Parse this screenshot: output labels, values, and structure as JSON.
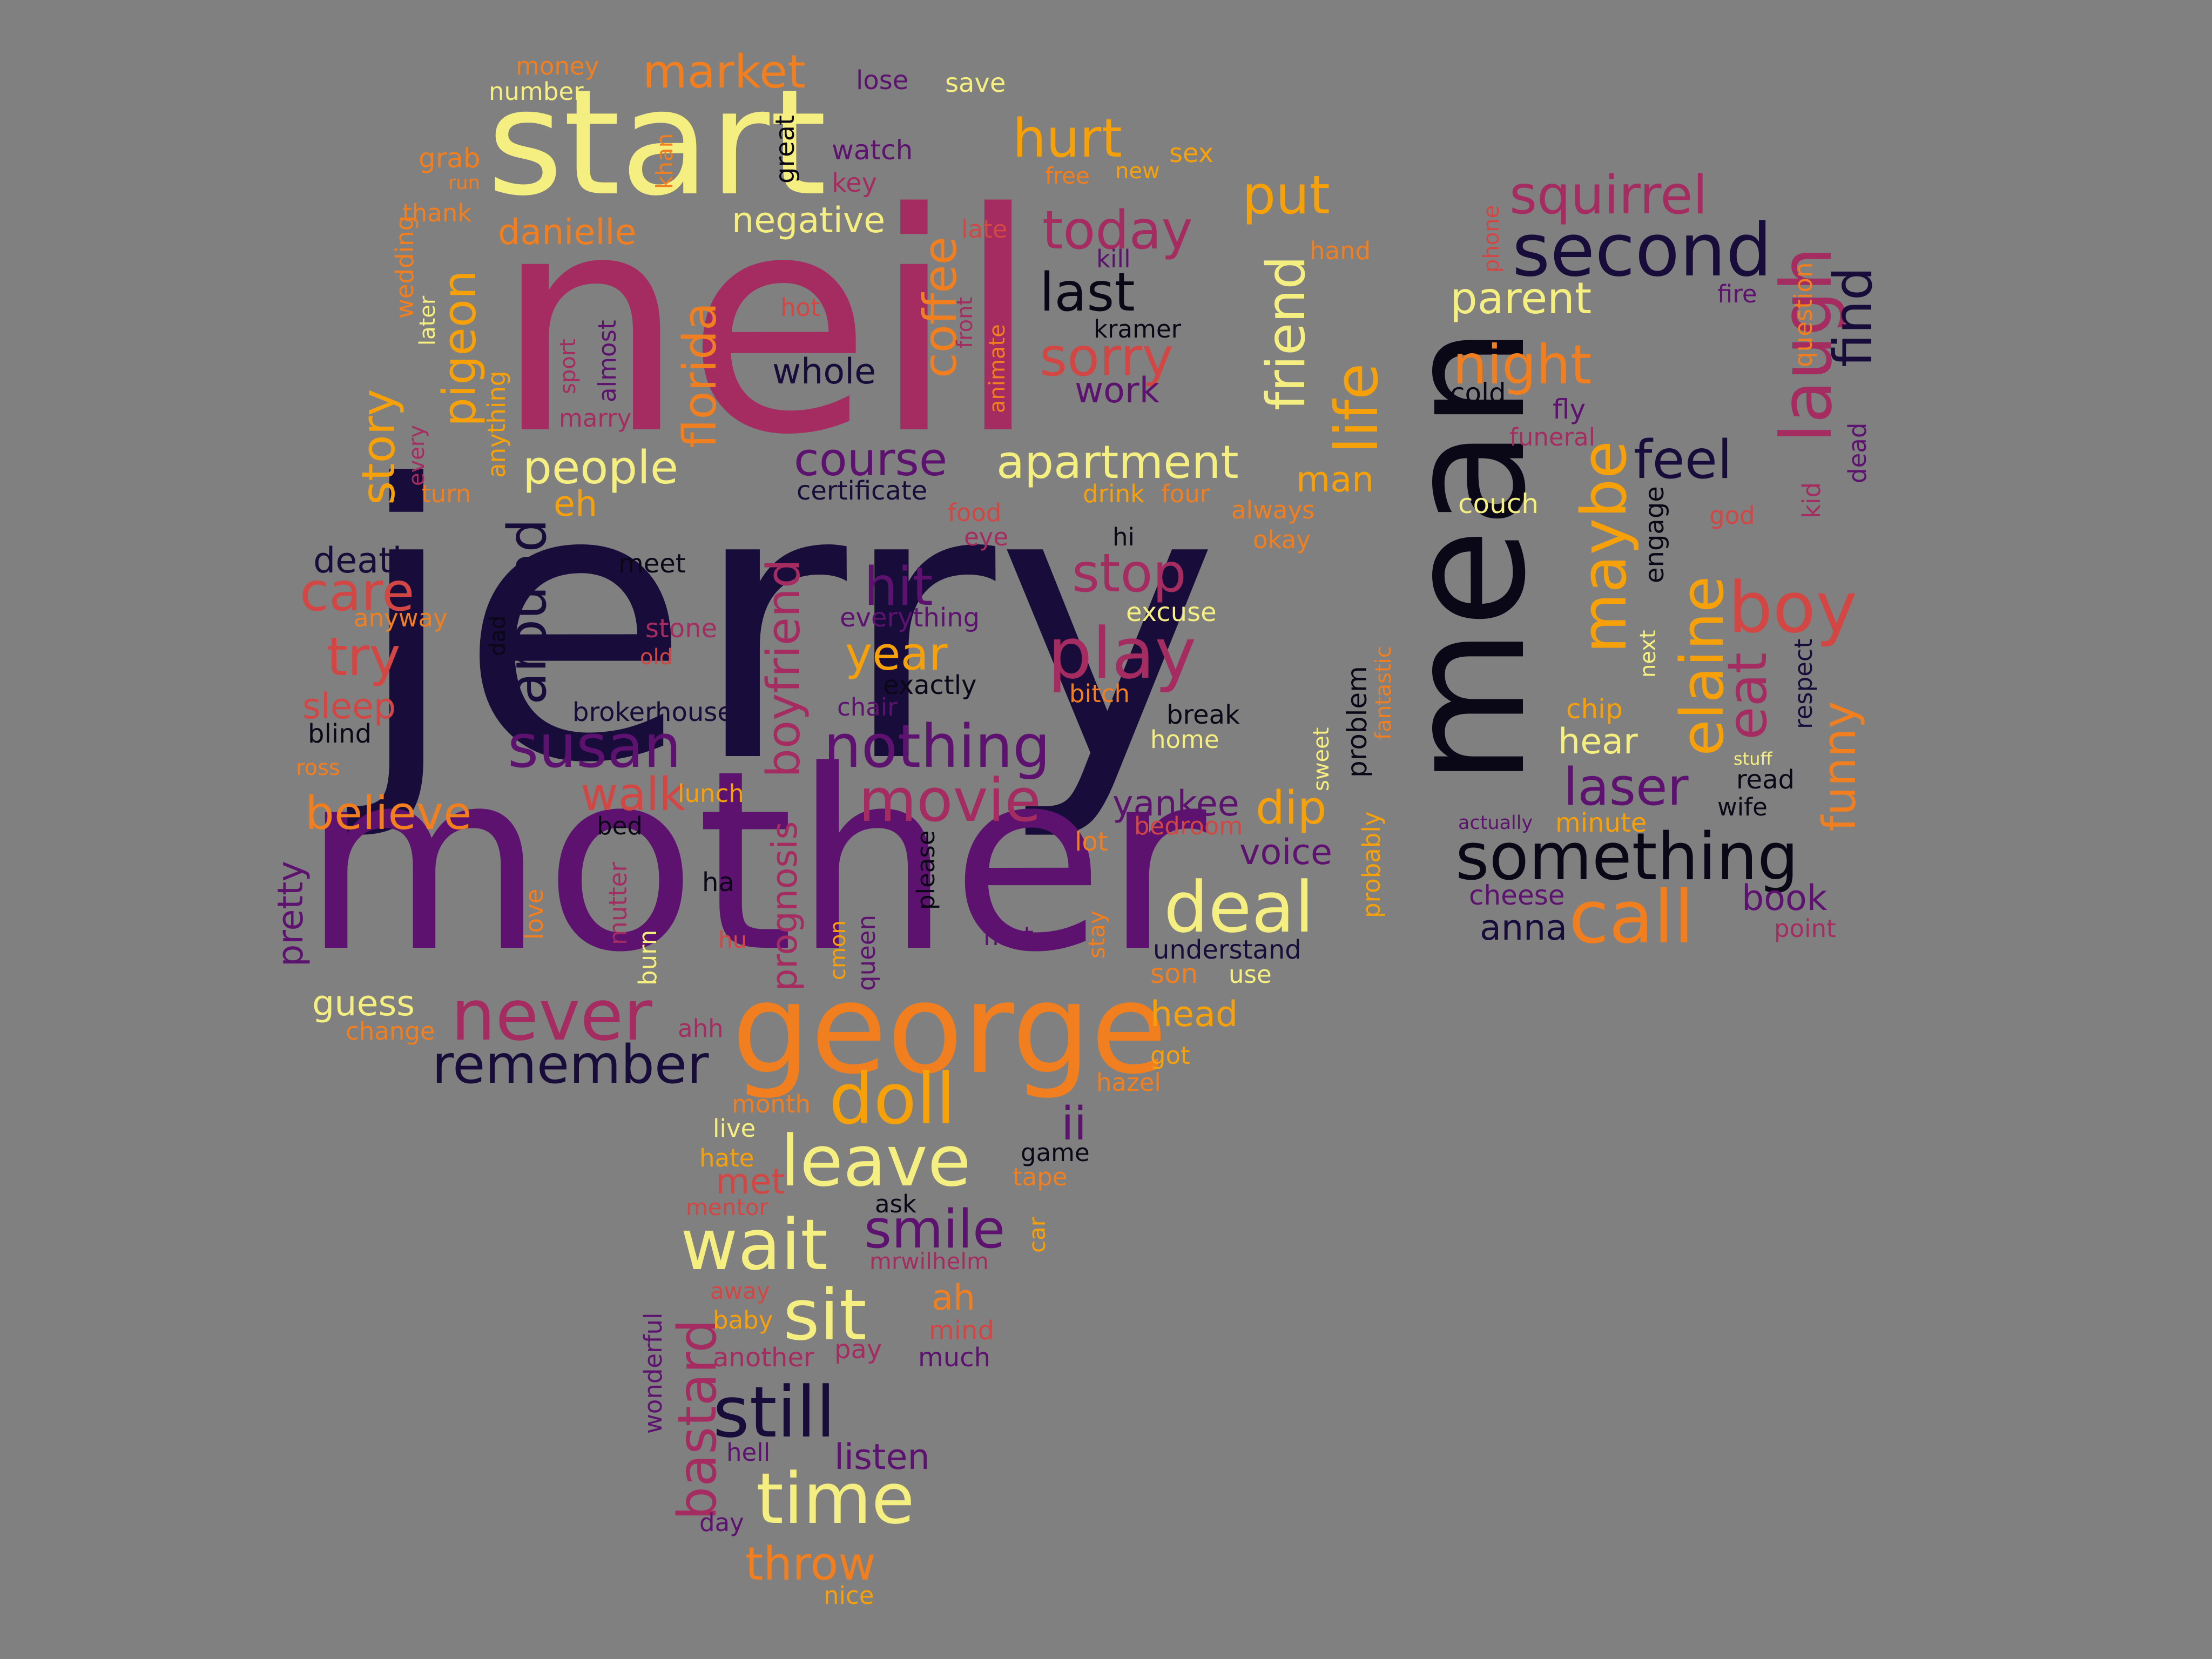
{
  "palette": {
    "background": "#808080",
    "dark": "#170c3a",
    "purple": "#5c126e",
    "magenta": "#a52c60",
    "red": "#d24644",
    "orange": "#f17f1f",
    "amber": "#f6a10a",
    "yellow": "#f5ee80",
    "black": "#0a0716"
  },
  "words": [
    {
      "text": "jerry",
      "color": "#170c3a"
    },
    {
      "text": "neil",
      "color": "#a52c60"
    },
    {
      "text": "mother",
      "color": "#5c126e"
    },
    {
      "text": "start",
      "color": "#f5ee80"
    },
    {
      "text": "mean",
      "color": "#0a0716"
    },
    {
      "text": "george",
      "color": "#f17f1f"
    },
    {
      "text": "something",
      "color": "#0a0716"
    },
    {
      "text": "second",
      "color": "#170c3a"
    },
    {
      "text": "squirrel",
      "color": "#a52c60"
    },
    {
      "text": "parent",
      "color": "#f5ee80"
    },
    {
      "text": "night",
      "color": "#f17f1f"
    },
    {
      "text": "laugh",
      "color": "#a52c60"
    },
    {
      "text": "find",
      "color": "#170c3a"
    },
    {
      "text": "maybe",
      "color": "#f6a10a"
    },
    {
      "text": "elaine",
      "color": "#f6a10a"
    },
    {
      "text": "boy",
      "color": "#d24644"
    },
    {
      "text": "eat",
      "color": "#a52c60"
    },
    {
      "text": "funny",
      "color": "#f17f1f"
    },
    {
      "text": "feel",
      "color": "#170c3a"
    },
    {
      "text": "laser",
      "color": "#5c126e"
    },
    {
      "text": "call",
      "color": "#f17f1f"
    },
    {
      "text": "hear",
      "color": "#f5ee80"
    },
    {
      "text": "chip",
      "color": "#f6a10a"
    },
    {
      "text": "minute",
      "color": "#f6a10a"
    },
    {
      "text": "actually",
      "color": "#5c126e"
    },
    {
      "text": "cheese",
      "color": "#5c126e"
    },
    {
      "text": "anna",
      "color": "#170c3a"
    },
    {
      "text": "book",
      "color": "#5c126e"
    },
    {
      "text": "point",
      "color": "#a52c60"
    },
    {
      "text": "read",
      "color": "#0a0716"
    },
    {
      "text": "wife",
      "color": "#0a0716"
    },
    {
      "text": "stuff",
      "color": "#f5ee80"
    },
    {
      "text": "respect",
      "color": "#170c3a"
    },
    {
      "text": "next",
      "color": "#f5ee80"
    },
    {
      "text": "engage",
      "color": "#0a0716"
    },
    {
      "text": "couch",
      "color": "#f5ee80"
    },
    {
      "text": "cold",
      "color": "#0a0716"
    },
    {
      "text": "fly",
      "color": "#5c126e"
    },
    {
      "text": "funeral",
      "color": "#a52c60"
    },
    {
      "text": "god",
      "color": "#d24644"
    },
    {
      "text": "kid",
      "color": "#a52c60"
    },
    {
      "text": "dead",
      "color": "#5c126e"
    },
    {
      "text": "phone",
      "color": "#d24644"
    },
    {
      "text": "question",
      "color": "#f17f1f"
    },
    {
      "text": "fire",
      "color": "#5c126e"
    },
    {
      "text": "money",
      "color": "#f17f1f"
    },
    {
      "text": "number",
      "color": "#f5ee80"
    },
    {
      "text": "market",
      "color": "#f17f1f"
    },
    {
      "text": "lose",
      "color": "#5c126e"
    },
    {
      "text": "save",
      "color": "#f5ee80"
    },
    {
      "text": "grab",
      "color": "#f17f1f"
    },
    {
      "text": "run",
      "color": "#f17f1f"
    },
    {
      "text": "khan",
      "color": "#f17f1f"
    },
    {
      "text": "great",
      "color": "#0a0716"
    },
    {
      "text": "watch",
      "color": "#5c126e"
    },
    {
      "text": "key",
      "color": "#a52c60"
    },
    {
      "text": "hurt",
      "color": "#f6a10a"
    },
    {
      "text": "free",
      "color": "#f17f1f"
    },
    {
      "text": "new",
      "color": "#f6a10a"
    },
    {
      "text": "sex",
      "color": "#f6a10a"
    },
    {
      "text": "thank",
      "color": "#f17f1f"
    },
    {
      "text": "danielle",
      "color": "#f17f1f"
    },
    {
      "text": "negative",
      "color": "#f5ee80"
    },
    {
      "text": "late",
      "color": "#d24644"
    },
    {
      "text": "put",
      "color": "#f6a10a"
    },
    {
      "text": "today",
      "color": "#a52c60"
    },
    {
      "text": "kill",
      "color": "#5c126e"
    },
    {
      "text": "hand",
      "color": "#f17f1f"
    },
    {
      "text": "wedding",
      "color": "#f17f1f"
    },
    {
      "text": "later",
      "color": "#f5ee80"
    },
    {
      "text": "pigeon",
      "color": "#f6a10a"
    },
    {
      "text": "hot",
      "color": "#d24644"
    },
    {
      "text": "florida",
      "color": "#f17f1f"
    },
    {
      "text": "coffee",
      "color": "#f17f1f"
    },
    {
      "text": "front",
      "color": "#a52c60"
    },
    {
      "text": "animate",
      "color": "#f17f1f"
    },
    {
      "text": "last",
      "color": "#0a0716"
    },
    {
      "text": "kramer",
      "color": "#0a0716"
    },
    {
      "text": "friend",
      "color": "#f5ee80"
    },
    {
      "text": "life",
      "color": "#f6a10a"
    },
    {
      "text": "sorry",
      "color": "#d24644"
    },
    {
      "text": "work",
      "color": "#5c126e"
    },
    {
      "text": "whole",
      "color": "#170c3a"
    },
    {
      "text": "story",
      "color": "#f6a10a"
    },
    {
      "text": "every",
      "color": "#a52c60"
    },
    {
      "text": "anything",
      "color": "#f6a10a"
    },
    {
      "text": "sport",
      "color": "#a52c60"
    },
    {
      "text": "almost",
      "color": "#5c126e"
    },
    {
      "text": "marry",
      "color": "#a52c60"
    },
    {
      "text": "turn",
      "color": "#f17f1f"
    },
    {
      "text": "people",
      "color": "#f5ee80"
    },
    {
      "text": "course",
      "color": "#5c126e"
    },
    {
      "text": "apartment",
      "color": "#f5ee80"
    },
    {
      "text": "man",
      "color": "#f6a10a"
    },
    {
      "text": "certificate",
      "color": "#170c3a"
    },
    {
      "text": "drink",
      "color": "#f6a10a"
    },
    {
      "text": "four",
      "color": "#f17f1f"
    },
    {
      "text": "always",
      "color": "#f17f1f"
    },
    {
      "text": "okay",
      "color": "#f17f1f"
    },
    {
      "text": "eh",
      "color": "#f6a10a"
    },
    {
      "text": "food",
      "color": "#d24644"
    },
    {
      "text": "eye",
      "color": "#a52c60"
    },
    {
      "text": "hi",
      "color": "#0a0716"
    },
    {
      "text": "death",
      "color": "#170c3a"
    },
    {
      "text": "meet",
      "color": "#0a0716"
    },
    {
      "text": "around",
      "color": "#170c3a"
    },
    {
      "text": "care",
      "color": "#d24644"
    },
    {
      "text": "anyway",
      "color": "#f17f1f"
    },
    {
      "text": "dad",
      "color": "#0a0716"
    },
    {
      "text": "stone",
      "color": "#a52c60"
    },
    {
      "text": "old",
      "color": "#d24644"
    },
    {
      "text": "hit",
      "color": "#5c126e"
    },
    {
      "text": "everything",
      "color": "#5c126e"
    },
    {
      "text": "stop",
      "color": "#a52c60"
    },
    {
      "text": "excuse",
      "color": "#f5ee80"
    },
    {
      "text": "fantastic",
      "color": "#f17f1f"
    },
    {
      "text": "try",
      "color": "#d24644"
    },
    {
      "text": "boyfriend",
      "color": "#a52c60"
    },
    {
      "text": "year",
      "color": "#f6a10a"
    },
    {
      "text": "play",
      "color": "#a52c60"
    },
    {
      "text": "problem",
      "color": "#0a0716"
    },
    {
      "text": "exactly",
      "color": "#0a0716"
    },
    {
      "text": "sleep",
      "color": "#d24644"
    },
    {
      "text": "blind",
      "color": "#0a0716"
    },
    {
      "text": "brokerhouse",
      "color": "#170c3a"
    },
    {
      "text": "chair",
      "color": "#5c126e"
    },
    {
      "text": "bitch",
      "color": "#f17f1f"
    },
    {
      "text": "break",
      "color": "#0a0716"
    },
    {
      "text": "susan",
      "color": "#5c126e"
    },
    {
      "text": "nothing",
      "color": "#5c126e"
    },
    {
      "text": "home",
      "color": "#f5ee80"
    },
    {
      "text": "sweet",
      "color": "#f5ee80"
    },
    {
      "text": "ross",
      "color": "#f17f1f"
    },
    {
      "text": "walk",
      "color": "#d24644"
    },
    {
      "text": "believe",
      "color": "#f17f1f"
    },
    {
      "text": "lunch",
      "color": "#f6a10a"
    },
    {
      "text": "movie",
      "color": "#a52c60"
    },
    {
      "text": "yankee",
      "color": "#5c126e"
    },
    {
      "text": "dip",
      "color": "#f6a10a"
    },
    {
      "text": "probably",
      "color": "#f6a10a"
    },
    {
      "text": "bedroom",
      "color": "#d24644"
    },
    {
      "text": "bed",
      "color": "#0a0716"
    },
    {
      "text": "prognosis",
      "color": "#a52c60"
    },
    {
      "text": "lot",
      "color": "#f17f1f"
    },
    {
      "text": "voice",
      "color": "#5c126e"
    },
    {
      "text": "pretty",
      "color": "#5c126e"
    },
    {
      "text": "ha",
      "color": "#0a0716"
    },
    {
      "text": "deal",
      "color": "#f5ee80"
    },
    {
      "text": "love",
      "color": "#f17f1f"
    },
    {
      "text": "mutter",
      "color": "#a52c60"
    },
    {
      "text": "please",
      "color": "#0a0716"
    },
    {
      "text": "stay",
      "color": "#f17f1f"
    },
    {
      "text": "burn",
      "color": "#f5ee80"
    },
    {
      "text": "hu",
      "color": "#d24644"
    },
    {
      "text": "cmon",
      "color": "#f6a10a"
    },
    {
      "text": "queen",
      "color": "#5c126e"
    },
    {
      "text": "first",
      "color": "#5c126e"
    },
    {
      "text": "understand",
      "color": "#170c3a"
    },
    {
      "text": "son",
      "color": "#f17f1f"
    },
    {
      "text": "use",
      "color": "#f5ee80"
    },
    {
      "text": "guess",
      "color": "#f5ee80"
    },
    {
      "text": "change",
      "color": "#f17f1f"
    },
    {
      "text": "never",
      "color": "#a52c60"
    },
    {
      "text": "head",
      "color": "#f6a10a"
    },
    {
      "text": "remember",
      "color": "#170c3a"
    },
    {
      "text": "ahh",
      "color": "#a52c60"
    },
    {
      "text": "got",
      "color": "#f6a10a"
    },
    {
      "text": "hazel",
      "color": "#f17f1f"
    },
    {
      "text": "doll",
      "color": "#f6a10a"
    },
    {
      "text": "month",
      "color": "#f17f1f"
    },
    {
      "text": "ii",
      "color": "#5c126e"
    },
    {
      "text": "live",
      "color": "#f5ee80"
    },
    {
      "text": "leave",
      "color": "#f5ee80"
    },
    {
      "text": "game",
      "color": "#0a0716"
    },
    {
      "text": "hate",
      "color": "#f6a10a"
    },
    {
      "text": "tape",
      "color": "#f17f1f"
    },
    {
      "text": "met",
      "color": "#d24644"
    },
    {
      "text": "mentor",
      "color": "#d24644"
    },
    {
      "text": "ask",
      "color": "#0a0716"
    },
    {
      "text": "car",
      "color": "#f6a10a"
    },
    {
      "text": "wait",
      "color": "#f5ee80"
    },
    {
      "text": "smile",
      "color": "#5c126e"
    },
    {
      "text": "mrwilhelm",
      "color": "#a52c60"
    },
    {
      "text": "away",
      "color": "#d24644"
    },
    {
      "text": "ah",
      "color": "#f17f1f"
    },
    {
      "text": "wonderful",
      "color": "#5c126e"
    },
    {
      "text": "bastard",
      "color": "#a52c60"
    },
    {
      "text": "sit",
      "color": "#f5ee80"
    },
    {
      "text": "mind",
      "color": "#d24644"
    },
    {
      "text": "baby",
      "color": "#f6a10a"
    },
    {
      "text": "pay",
      "color": "#a52c60"
    },
    {
      "text": "another",
      "color": "#a52c60"
    },
    {
      "text": "much",
      "color": "#5c126e"
    },
    {
      "text": "still",
      "color": "#170c3a"
    },
    {
      "text": "hell",
      "color": "#5c126e"
    },
    {
      "text": "listen",
      "color": "#5c126e"
    },
    {
      "text": "time",
      "color": "#f5ee80"
    },
    {
      "text": "day",
      "color": "#5c126e"
    },
    {
      "text": "throw",
      "color": "#f17f1f"
    },
    {
      "text": "nice",
      "color": "#f6a10a"
    }
  ]
}
